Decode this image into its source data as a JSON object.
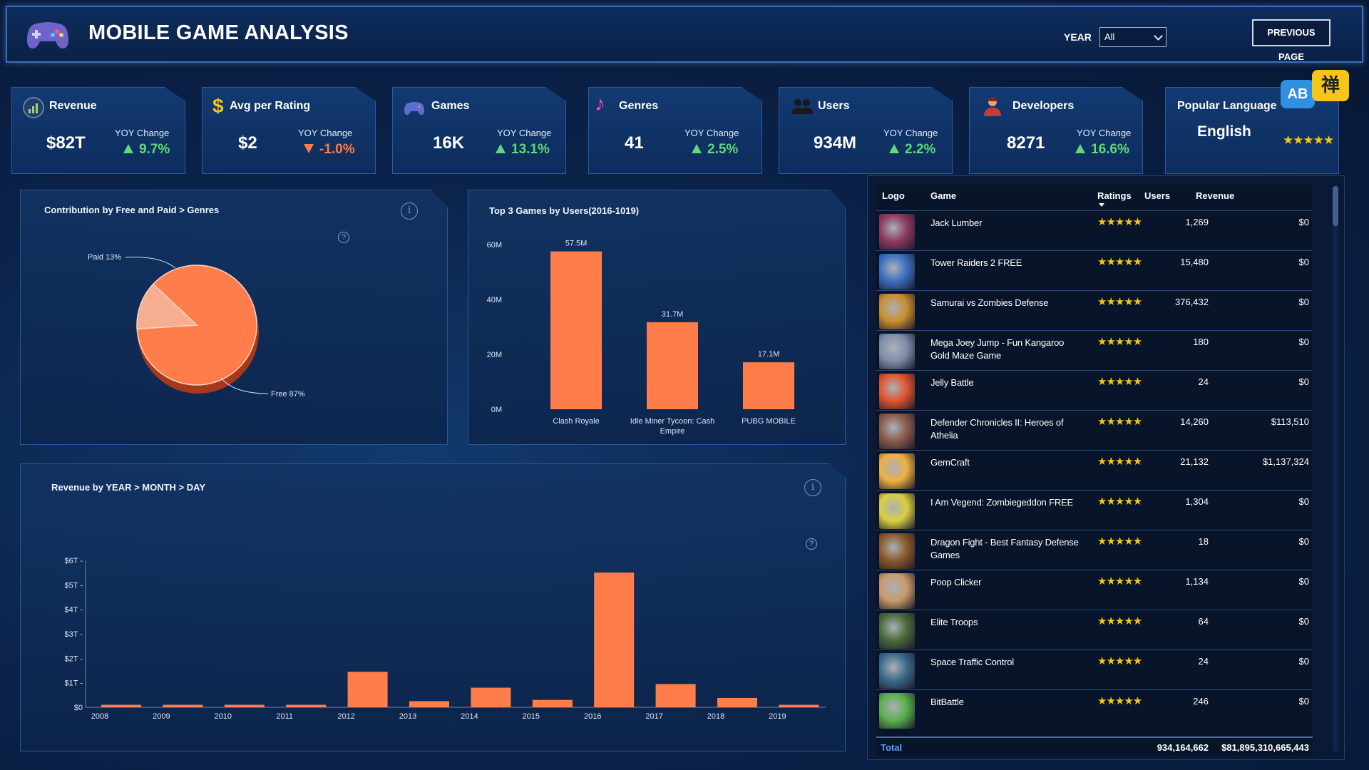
{
  "header": {
    "title": "MOBILE GAME ANALYSIS",
    "year_label": "YEAR",
    "year_value": "All",
    "prev_button": "PREVIOUS PAGE"
  },
  "kpis": {
    "yoy_label": "YOY Change",
    "revenue": {
      "title": "Revenue",
      "value": "$82T",
      "yoy": "9.7%",
      "direction": "up"
    },
    "avg_rating": {
      "title": "Avg per Rating",
      "value": "$2",
      "yoy": "-1.0%",
      "direction": "down"
    },
    "games": {
      "title": "Games",
      "value": "16K",
      "yoy": "13.1%",
      "direction": "up"
    },
    "genres": {
      "title": "Genres",
      "value": "41",
      "yoy": "2.5%",
      "direction": "up"
    },
    "users": {
      "title": "Users",
      "value": "934M",
      "yoy": "2.2%",
      "direction": "up"
    },
    "developers": {
      "title": "Developers",
      "value": "8271",
      "yoy": "16.6%",
      "direction": "up"
    },
    "language": {
      "title": "Popular Language",
      "value": "English",
      "stars": "★★★★★",
      "icon_text_a": "AB",
      "icon_text_b": "禅"
    }
  },
  "colors": {
    "accent": "#ff7d4a",
    "accent_light": "#f4a88a",
    "up": "#5fd97a",
    "down": "#ff7a45",
    "star": "#f5c518"
  },
  "chart_data": [
    {
      "type": "pie",
      "title": "Contribution by Free and Paid > Genres",
      "labels": [
        "Free",
        "Paid"
      ],
      "values": [
        87,
        13
      ],
      "slice_labels": [
        "Free 87%",
        "Paid 13%"
      ],
      "colors": [
        "#ff7d4a",
        "#f6ad90"
      ]
    },
    {
      "type": "bar",
      "title": "Top 3 Games by Users(2016-1019)",
      "categories": [
        "Clash Royale",
        "Idle Miner Tycoon: Cash Empire",
        "PUBG MOBILE"
      ],
      "values": [
        57.5,
        31.7,
        17.1
      ],
      "data_labels": [
        "57.5M",
        "31.7M",
        "17.1M"
      ],
      "yticks": [
        "0M",
        "20M",
        "40M",
        "60M"
      ],
      "ylim": [
        0,
        60
      ]
    },
    {
      "type": "bar",
      "title": "Revenue by YEAR > MONTH > DAY",
      "categories": [
        "2008",
        "2009",
        "2010",
        "2011",
        "2012",
        "2013",
        "2014",
        "2015",
        "2016",
        "2017",
        "2018",
        "2019"
      ],
      "values": [
        0.1,
        0.1,
        0.1,
        0.1,
        1.45,
        0.25,
        0.8,
        0.3,
        5.5,
        0.95,
        0.38,
        0.1
      ],
      "unit": "T",
      "yticks": [
        "$0",
        "$1T",
        "$2T",
        "$3T",
        "$4T",
        "$5T",
        "$6T"
      ],
      "ylim": [
        0,
        6
      ]
    }
  ],
  "table": {
    "headers": {
      "logo": "Logo",
      "game": "Game",
      "ratings": "Ratings",
      "users": "Users",
      "revenue": "Revenue"
    },
    "rows": [
      {
        "game": "Jack Lumber",
        "rating": "★★★★★",
        "users": "1,269",
        "revenue": "$0",
        "thumb": "#8e3a5e"
      },
      {
        "game": "Tower Raiders 2 FREE",
        "rating": "★★★★★",
        "users": "15,480",
        "revenue": "$0",
        "thumb": "#3a6fc2"
      },
      {
        "game": "Samurai vs Zombies Defense",
        "rating": "★★★★★",
        "users": "376,432",
        "revenue": "$0",
        "thumb": "#c98d2e"
      },
      {
        "game": "Mega Joey Jump - Fun Kangaroo Gold Maze Game",
        "rating": "★★★★★",
        "users": "180",
        "revenue": "$0",
        "thumb": "#7e8ea8"
      },
      {
        "game": "Jelly Battle",
        "rating": "★★★★★",
        "users": "24",
        "revenue": "$0",
        "thumb": "#e0552f"
      },
      {
        "game": "Defender Chronicles II: Heroes of Athelia",
        "rating": "★★★★★",
        "users": "14,260",
        "revenue": "$113,510",
        "thumb": "#8a5a4c"
      },
      {
        "game": "GemCraft",
        "rating": "★★★★★",
        "users": "21,132",
        "revenue": "$1,137,324",
        "thumb": "#f0b040"
      },
      {
        "game": "I Am Vegend: Zombiegeddon FREE",
        "rating": "★★★★★",
        "users": "1,304",
        "revenue": "$0",
        "thumb": "#d8d040"
      },
      {
        "game": "Dragon Fight - Best Fantasy Defense Games",
        "rating": "★★★★★",
        "users": "18",
        "revenue": "$0",
        "thumb": "#8a5a2a"
      },
      {
        "game": "Poop Clicker",
        "rating": "★★★★★",
        "users": "1,134",
        "revenue": "$0",
        "thumb": "#c89a6a"
      },
      {
        "game": "Elite Troops",
        "rating": "★★★★★",
        "users": "64",
        "revenue": "$0",
        "thumb": "#4a6a3a"
      },
      {
        "game": "Space Traffic Control",
        "rating": "★★★★★",
        "users": "24",
        "revenue": "$0",
        "thumb": "#3a6a8a"
      },
      {
        "game": "BitBattle",
        "rating": "★★★★★",
        "users": "246",
        "revenue": "$0",
        "thumb": "#5ab04a"
      }
    ],
    "total": {
      "label": "Total",
      "users": "934,164,662",
      "revenue": "$81,895,310,665,443"
    }
  }
}
